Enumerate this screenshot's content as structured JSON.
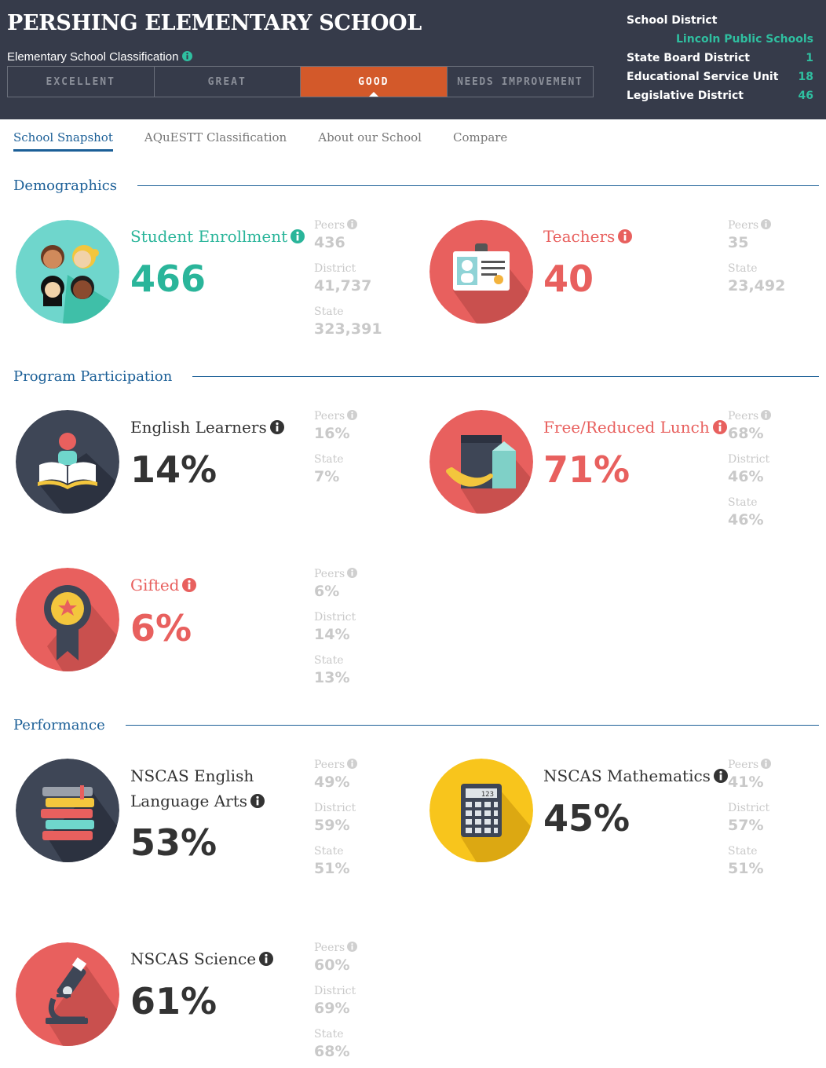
{
  "header": {
    "school_name": "PERSHING ELEMENTARY SCHOOL",
    "classification_label": "Elementary School Classification",
    "ratings": [
      "EXCELLENT",
      "GREAT",
      "GOOD",
      "NEEDS IMPROVEMENT"
    ],
    "active_rating": "GOOD",
    "school_district_label": "School District",
    "school_district_value": "Lincoln Public Schools",
    "state_board_label": "State Board District",
    "state_board_value": "1",
    "esu_label": "Educational Service Unit",
    "esu_value": "18",
    "legislative_label": "Legislative District",
    "legislative_value": "46"
  },
  "tabs": [
    "School Snapshot",
    "AQuESTT Classification",
    "About our School",
    "Compare"
  ],
  "sections": {
    "demographics": "Demographics",
    "program": "Program Participation",
    "performance": "Performance"
  },
  "labels": {
    "peers": "Peers",
    "district": "District",
    "state": "State"
  },
  "stats": {
    "enrollment": {
      "title": "Student Enrollment",
      "value": "466",
      "peers": "436",
      "district": "41,737",
      "state": "323,391"
    },
    "teachers": {
      "title": "Teachers",
      "value": "40",
      "peers": "35",
      "state": "23,492"
    },
    "english_learners": {
      "title": "English Learners",
      "value": "14%",
      "peers": "16%",
      "state": "7%"
    },
    "lunch": {
      "title": "Free/Reduced Lunch",
      "value": "71%",
      "peers": "68%",
      "district": "46%",
      "state": "46%"
    },
    "gifted": {
      "title": "Gifted",
      "value": "6%",
      "peers": "6%",
      "district": "14%",
      "state": "13%"
    },
    "ela": {
      "title_line1": "NSCAS English",
      "title_line2": "Language Arts",
      "value": "53%",
      "peers": "49%",
      "district": "59%",
      "state": "51%"
    },
    "math": {
      "title": "NSCAS Mathematics",
      "value": "45%",
      "peers": "41%",
      "district": "57%",
      "state": "51%"
    },
    "science": {
      "title": "NSCAS Science",
      "value": "61%",
      "peers": "60%",
      "district": "69%",
      "state": "68%"
    }
  },
  "calculator_display": "123",
  "colors": {
    "header_bg": "#363b4a",
    "active_rating": "#d3592a",
    "teal": "#2ab59a",
    "red": "#e8605e",
    "blue": "#1b5f97",
    "muted": "#c9c9c9"
  },
  "icons": [
    "info-icon",
    "students-icon",
    "id-badge-icon",
    "reading-icon",
    "lunch-icon",
    "award-ribbon-icon",
    "books-icon",
    "calculator-icon",
    "microscope-icon"
  ]
}
